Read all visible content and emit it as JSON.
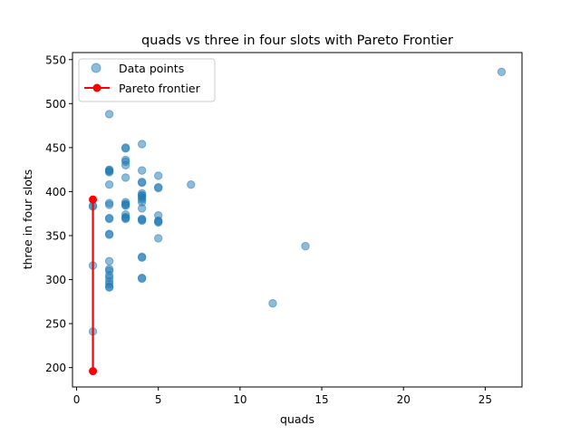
{
  "chart_data": {
    "type": "scatter",
    "title": "quads vs three in four slots with Pareto Frontier",
    "xlabel": "quads",
    "ylabel": "three in four slots",
    "xlim": [
      -0.25,
      27.25
    ],
    "ylim": [
      178,
      558
    ],
    "xticks": [
      0,
      5,
      10,
      15,
      20,
      25
    ],
    "yticks": [
      200,
      250,
      300,
      350,
      400,
      450,
      500,
      550
    ],
    "grid": false,
    "legend_position": "top-left",
    "series": [
      {
        "name": "Data points",
        "kind": "scatter",
        "color": "#1f77b4",
        "alpha": 0.5,
        "points": [
          [
            1,
            383
          ],
          [
            1,
            384
          ],
          [
            1,
            316
          ],
          [
            1,
            241
          ],
          [
            2,
            488
          ],
          [
            2,
            425
          ],
          [
            2,
            424
          ],
          [
            2,
            423
          ],
          [
            2,
            422
          ],
          [
            2,
            408
          ],
          [
            2,
            387
          ],
          [
            2,
            385
          ],
          [
            2,
            370
          ],
          [
            2,
            369
          ],
          [
            2,
            352
          ],
          [
            2,
            351
          ],
          [
            2,
            321
          ],
          [
            2,
            312
          ],
          [
            2,
            310
          ],
          [
            2,
            305
          ],
          [
            2,
            302
          ],
          [
            2,
            298
          ],
          [
            2,
            295
          ],
          [
            2,
            292
          ],
          [
            2,
            291
          ],
          [
            3,
            450
          ],
          [
            3,
            449
          ],
          [
            3,
            436
          ],
          [
            3,
            434
          ],
          [
            3,
            430
          ],
          [
            3,
            416
          ],
          [
            3,
            388
          ],
          [
            3,
            386
          ],
          [
            3,
            385
          ],
          [
            3,
            384
          ],
          [
            3,
            374
          ],
          [
            3,
            371
          ],
          [
            3,
            370
          ],
          [
            3,
            369
          ],
          [
            4,
            454
          ],
          [
            4,
            424
          ],
          [
            4,
            411
          ],
          [
            4,
            410
          ],
          [
            4,
            398
          ],
          [
            4,
            396
          ],
          [
            4,
            395
          ],
          [
            4,
            393
          ],
          [
            4,
            391
          ],
          [
            4,
            388
          ],
          [
            4,
            381
          ],
          [
            4,
            369
          ],
          [
            4,
            368
          ],
          [
            4,
            367
          ],
          [
            4,
            326
          ],
          [
            4,
            325
          ],
          [
            4,
            302
          ],
          [
            4,
            301
          ],
          [
            5,
            418
          ],
          [
            5,
            405
          ],
          [
            5,
            404
          ],
          [
            5,
            373
          ],
          [
            5,
            367
          ],
          [
            5,
            366
          ],
          [
            5,
            365
          ],
          [
            5,
            347
          ],
          [
            7,
            408
          ],
          [
            12,
            273
          ],
          [
            14,
            338
          ],
          [
            26,
            536
          ]
        ]
      },
      {
        "name": "Pareto frontier",
        "kind": "line",
        "color": "#ff0000",
        "points": [
          [
            1,
            196
          ],
          [
            1,
            391
          ]
        ]
      }
    ]
  }
}
